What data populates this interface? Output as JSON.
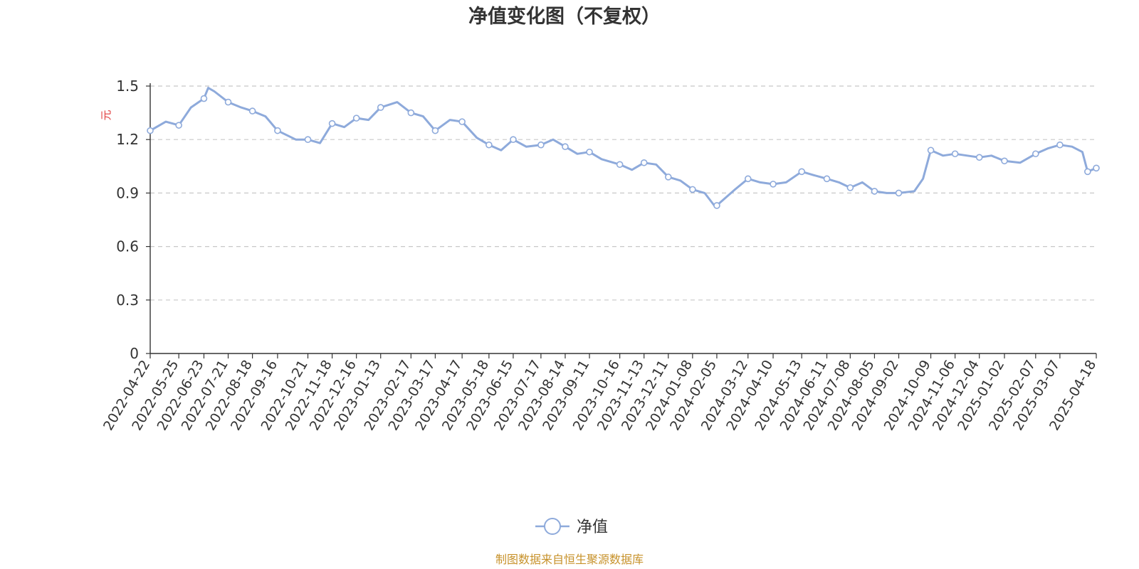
{
  "chart_data": {
    "type": "line",
    "title": "净值变化图（不复权）",
    "ylabel": "元",
    "ylim": [
      0,
      1.5
    ],
    "yticks": [
      "0",
      "0.3",
      "0.6",
      "0.9",
      "1.2",
      "1.5"
    ],
    "grid": true,
    "legend_position": "bottom-center",
    "x_tick_labels": [
      "2022-04-22",
      "2022-05-25",
      "2022-06-23",
      "2022-07-21",
      "2022-08-18",
      "2022-09-16",
      "2022-10-21",
      "2022-11-18",
      "2022-12-16",
      "2023-01-13",
      "2023-02-17",
      "2023-03-17",
      "2023-04-17",
      "2023-05-18",
      "2023-06-15",
      "2023-07-17",
      "2023-08-14",
      "2023-09-11",
      "2023-10-16",
      "2023-11-13",
      "2023-12-11",
      "2024-01-08",
      "2024-02-05",
      "2024-03-12",
      "2024-04-10",
      "2024-05-13",
      "2024-06-11",
      "2024-07-08",
      "2024-08-05",
      "2024-09-02",
      "2024-10-09",
      "2024-11-06",
      "2024-12-04",
      "2025-01-02",
      "2025-02-07",
      "2025-03-07",
      "2025-04-18"
    ],
    "series": [
      {
        "name": "净值",
        "color": "#8eaadb",
        "x": [
          "2022-04-22",
          "2022-05-10",
          "2022-05-25",
          "2022-06-08",
          "2022-06-23",
          "2022-06-28",
          "2022-07-05",
          "2022-07-21",
          "2022-08-05",
          "2022-08-18",
          "2022-09-02",
          "2022-09-16",
          "2022-10-07",
          "2022-10-21",
          "2022-11-04",
          "2022-11-18",
          "2022-12-02",
          "2022-12-16",
          "2022-12-30",
          "2023-01-13",
          "2023-02-01",
          "2023-02-17",
          "2023-03-03",
          "2023-03-17",
          "2023-04-03",
          "2023-04-17",
          "2023-05-04",
          "2023-05-18",
          "2023-06-01",
          "2023-06-15",
          "2023-06-30",
          "2023-07-17",
          "2023-07-31",
          "2023-08-14",
          "2023-08-28",
          "2023-09-11",
          "2023-09-25",
          "2023-10-16",
          "2023-10-30",
          "2023-11-13",
          "2023-11-27",
          "2023-12-11",
          "2023-12-25",
          "2024-01-08",
          "2024-01-22",
          "2024-02-02",
          "2024-02-05",
          "2024-02-26",
          "2024-03-12",
          "2024-03-26",
          "2024-04-10",
          "2024-04-25",
          "2024-05-13",
          "2024-05-27",
          "2024-06-11",
          "2024-06-25",
          "2024-07-08",
          "2024-07-22",
          "2024-08-05",
          "2024-08-19",
          "2024-09-02",
          "2024-09-20",
          "2024-09-30",
          "2024-10-09",
          "2024-10-23",
          "2024-11-06",
          "2024-11-20",
          "2024-12-04",
          "2024-12-18",
          "2025-01-02",
          "2025-01-20",
          "2025-02-07",
          "2025-02-21",
          "2025-03-07",
          "2025-03-21",
          "2025-04-02",
          "2025-04-08",
          "2025-04-18"
        ],
        "values": [
          1.25,
          1.3,
          1.28,
          1.38,
          1.43,
          1.49,
          1.47,
          1.41,
          1.38,
          1.36,
          1.33,
          1.25,
          1.2,
          1.2,
          1.18,
          1.29,
          1.27,
          1.32,
          1.31,
          1.38,
          1.41,
          1.35,
          1.33,
          1.25,
          1.31,
          1.3,
          1.21,
          1.17,
          1.14,
          1.2,
          1.16,
          1.17,
          1.2,
          1.16,
          1.12,
          1.13,
          1.09,
          1.06,
          1.03,
          1.07,
          1.06,
          0.99,
          0.97,
          0.92,
          0.9,
          0.83,
          0.83,
          0.92,
          0.98,
          0.96,
          0.95,
          0.96,
          1.02,
          1.0,
          0.98,
          0.96,
          0.93,
          0.96,
          0.91,
          0.9,
          0.9,
          0.91,
          0.98,
          1.14,
          1.11,
          1.12,
          1.11,
          1.1,
          1.11,
          1.08,
          1.07,
          1.12,
          1.15,
          1.17,
          1.16,
          1.13,
          1.02,
          1.04
        ]
      }
    ],
    "markers": [
      "2022-04-22",
      "2022-05-25",
      "2022-06-23",
      "2022-07-21",
      "2022-08-18",
      "2022-09-16",
      "2022-10-21",
      "2022-11-18",
      "2022-12-16",
      "2023-01-13",
      "2023-02-17",
      "2023-03-17",
      "2023-04-17",
      "2023-05-18",
      "2023-06-15",
      "2023-07-17",
      "2023-08-14",
      "2023-09-11",
      "2023-10-16",
      "2023-11-13",
      "2023-12-11",
      "2024-01-08",
      "2024-02-05",
      "2024-03-12",
      "2024-04-10",
      "2024-05-13",
      "2024-06-11",
      "2024-07-08",
      "2024-08-05",
      "2024-09-02",
      "2024-10-09",
      "2024-11-06",
      "2024-12-04",
      "2025-01-02",
      "2025-02-07",
      "2025-03-07",
      "2025-04-08",
      "2025-04-18"
    ]
  },
  "legend": {
    "label": "净值"
  },
  "source": "制图数据来自恒生聚源数据库"
}
